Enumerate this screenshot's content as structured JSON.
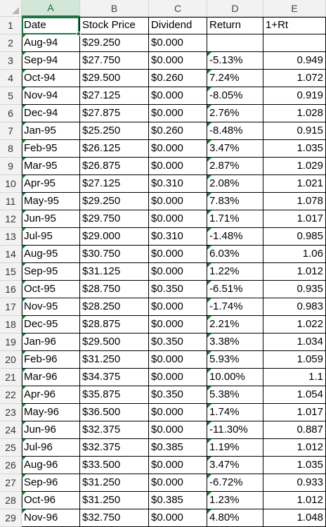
{
  "columns": [
    "A",
    "B",
    "C",
    "D",
    "E"
  ],
  "selected_column": "A",
  "rows": [
    {
      "n": "1",
      "date": "Date",
      "price": "Stock Price",
      "div": "Dividend",
      "ret": "Return",
      "rt": "1+Rt"
    },
    {
      "n": "2",
      "date": "Aug-94",
      "price": "$29.250",
      "div": "$0.000",
      "ret": "",
      "rt": ""
    },
    {
      "n": "3",
      "date": "Sep-94",
      "price": "$27.750",
      "div": "$0.000",
      "ret": "-5.13%",
      "rt": "0.949"
    },
    {
      "n": "4",
      "date": "Oct-94",
      "price": "$29.500",
      "div": "$0.260",
      "ret": "7.24%",
      "rt": "1.072"
    },
    {
      "n": "5",
      "date": "Nov-94",
      "price": "$27.125",
      "div": "$0.000",
      "ret": "-8.05%",
      "rt": "0.919"
    },
    {
      "n": "6",
      "date": "Dec-94",
      "price": "$27.875",
      "div": "$0.000",
      "ret": "2.76%",
      "rt": "1.028"
    },
    {
      "n": "7",
      "date": "Jan-95",
      "price": "$25.250",
      "div": "$0.260",
      "ret": "-8.48%",
      "rt": "0.915"
    },
    {
      "n": "8",
      "date": "Feb-95",
      "price": "$26.125",
      "div": "$0.000",
      "ret": "3.47%",
      "rt": "1.035"
    },
    {
      "n": "9",
      "date": "Mar-95",
      "price": "$26.875",
      "div": "$0.000",
      "ret": "2.87%",
      "rt": "1.029"
    },
    {
      "n": "10",
      "date": "Apr-95",
      "price": "$27.125",
      "div": "$0.310",
      "ret": "2.08%",
      "rt": "1.021"
    },
    {
      "n": "11",
      "date": "May-95",
      "price": "$29.250",
      "div": "$0.000",
      "ret": "7.83%",
      "rt": "1.078"
    },
    {
      "n": "12",
      "date": "Jun-95",
      "price": "$29.750",
      "div": "$0.000",
      "ret": "1.71%",
      "rt": "1.017"
    },
    {
      "n": "13",
      "date": "Jul-95",
      "price": "$29.000",
      "div": "$0.310",
      "ret": "-1.48%",
      "rt": "0.985"
    },
    {
      "n": "14",
      "date": "Aug-95",
      "price": "$30.750",
      "div": "$0.000",
      "ret": "6.03%",
      "rt": "1.06"
    },
    {
      "n": "15",
      "date": "Sep-95",
      "price": "$31.125",
      "div": "$0.000",
      "ret": "1.22%",
      "rt": "1.012"
    },
    {
      "n": "16",
      "date": "Oct-95",
      "price": "$28.750",
      "div": "$0.350",
      "ret": "-6.51%",
      "rt": "0.935"
    },
    {
      "n": "17",
      "date": "Nov-95",
      "price": "$28.250",
      "div": "$0.000",
      "ret": "-1.74%",
      "rt": "0.983"
    },
    {
      "n": "18",
      "date": "Dec-95",
      "price": "$28.875",
      "div": "$0.000",
      "ret": "2.21%",
      "rt": "1.022"
    },
    {
      "n": "19",
      "date": "Jan-96",
      "price": "$29.500",
      "div": "$0.350",
      "ret": "3.38%",
      "rt": "1.034"
    },
    {
      "n": "20",
      "date": "Feb-96",
      "price": "$31.250",
      "div": "$0.000",
      "ret": "5.93%",
      "rt": "1.059"
    },
    {
      "n": "21",
      "date": "Mar-96",
      "price": "$34.375",
      "div": "$0.000",
      "ret": "10.00%",
      "rt": "1.1"
    },
    {
      "n": "22",
      "date": "Apr-96",
      "price": "$35.875",
      "div": "$0.350",
      "ret": "5.38%",
      "rt": "1.054"
    },
    {
      "n": "23",
      "date": "May-96",
      "price": "$36.500",
      "div": "$0.000",
      "ret": "1.74%",
      "rt": "1.017"
    },
    {
      "n": "24",
      "date": "Jun-96",
      "price": "$32.375",
      "div": "$0.000",
      "ret": "-11.30%",
      "rt": "0.887"
    },
    {
      "n": "25",
      "date": "Jul-96",
      "price": "$32.375",
      "div": "$0.385",
      "ret": "1.19%",
      "rt": "1.012"
    },
    {
      "n": "26",
      "date": "Aug-96",
      "price": "$33.500",
      "div": "$0.000",
      "ret": "3.47%",
      "rt": "1.035"
    },
    {
      "n": "27",
      "date": "Sep-96",
      "price": "$31.250",
      "div": "$0.000",
      "ret": "-6.72%",
      "rt": "0.933"
    },
    {
      "n": "28",
      "date": "Oct-96",
      "price": "$31.250",
      "div": "$0.385",
      "ret": "1.23%",
      "rt": "1.012"
    },
    {
      "n": "29",
      "date": "Nov-96",
      "price": "$32.750",
      "div": "$0.000",
      "ret": "4.80%",
      "rt": "1.048"
    }
  ]
}
